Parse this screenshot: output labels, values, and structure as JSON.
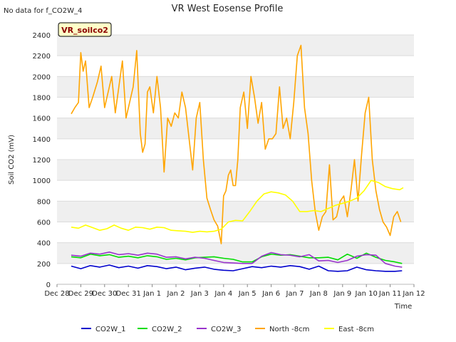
{
  "chart_data": {
    "type": "line",
    "title": "VR West Eosense Profile",
    "corner_note": "No data for f_CO2W_4",
    "site_badge": "VR_soilco2",
    "xlabel": "Time",
    "ylabel": "Soil CO2 (mV)",
    "ylim": [
      0,
      2400
    ],
    "yticks": [
      0,
      200,
      400,
      600,
      800,
      1000,
      1200,
      1400,
      1600,
      1800,
      2000,
      2200,
      2400
    ],
    "xlim": [
      0,
      15
    ],
    "xticks": [
      {
        "value": 0,
        "label": "Dec 28"
      },
      {
        "value": 1,
        "label": "Dec 29"
      },
      {
        "value": 2,
        "label": "Dec 30"
      },
      {
        "value": 3,
        "label": "Dec 31"
      },
      {
        "value": 4,
        "label": "Jan 1"
      },
      {
        "value": 5,
        "label": "Jan 2"
      },
      {
        "value": 6,
        "label": "Jan 3"
      },
      {
        "value": 7,
        "label": "Jan 4"
      },
      {
        "value": 8,
        "label": "Jan 5"
      },
      {
        "value": 9,
        "label": "Jan 6"
      },
      {
        "value": 10,
        "label": "Jan 7"
      },
      {
        "value": 11,
        "label": "Jan 8"
      },
      {
        "value": 12,
        "label": "Jan 9"
      },
      {
        "value": 13,
        "label": "Jan 10"
      },
      {
        "value": 14,
        "label": "Jan 11"
      },
      {
        "value": 15,
        "label": "Jan 12"
      }
    ],
    "grid": true,
    "legend_position": "bottom",
    "series": [
      {
        "name": "CO2W_1",
        "color": "#0000cc",
        "x": [
          0.6,
          1.0,
          1.4,
          1.8,
          2.2,
          2.6,
          3.0,
          3.4,
          3.8,
          4.2,
          4.6,
          5.0,
          5.4,
          5.8,
          6.2,
          6.6,
          7.0,
          7.4,
          7.8,
          8.2,
          8.6,
          9.0,
          9.4,
          9.8,
          10.2,
          10.6,
          11.0,
          11.4,
          11.8,
          12.2,
          12.6,
          13.0,
          13.4,
          13.8,
          14.2,
          14.5
        ],
        "y": [
          175,
          150,
          180,
          165,
          185,
          160,
          175,
          155,
          180,
          170,
          150,
          165,
          140,
          155,
          165,
          145,
          135,
          130,
          150,
          170,
          160,
          175,
          165,
          180,
          170,
          145,
          175,
          130,
          125,
          130,
          165,
          140,
          130,
          125,
          125,
          130
        ]
      },
      {
        "name": "CO2W_2",
        "color": "#00dd00",
        "x": [
          0.6,
          1.0,
          1.4,
          1.8,
          2.2,
          2.6,
          3.0,
          3.4,
          3.8,
          4.2,
          4.6,
          5.0,
          5.4,
          5.8,
          6.2,
          6.6,
          7.0,
          7.4,
          7.8,
          8.2,
          8.6,
          9.0,
          9.4,
          9.8,
          10.2,
          10.6,
          11.0,
          11.4,
          11.8,
          12.2,
          12.6,
          13.0,
          13.4,
          13.8,
          14.2,
          14.5
        ],
        "y": [
          265,
          255,
          290,
          275,
          285,
          260,
          270,
          255,
          275,
          265,
          240,
          250,
          235,
          255,
          260,
          265,
          250,
          240,
          215,
          215,
          265,
          290,
          280,
          285,
          270,
          255,
          255,
          260,
          235,
          290,
          250,
          300,
          260,
          230,
          215,
          200
        ]
      },
      {
        "name": "CO2W_3",
        "color": "#9933cc",
        "x": [
          0.6,
          1.0,
          1.4,
          1.8,
          2.2,
          2.6,
          3.0,
          3.4,
          3.8,
          4.2,
          4.6,
          5.0,
          5.4,
          5.8,
          6.2,
          6.6,
          7.0,
          7.4,
          7.8,
          8.2,
          8.6,
          9.0,
          9.4,
          9.8,
          10.2,
          10.6,
          11.0,
          11.4,
          11.8,
          12.2,
          12.6,
          13.0,
          13.4,
          13.8,
          14.2,
          14.5
        ],
        "y": [
          280,
          270,
          300,
          290,
          310,
          285,
          295,
          280,
          300,
          290,
          260,
          265,
          245,
          260,
          250,
          230,
          210,
          205,
          200,
          200,
          270,
          305,
          285,
          280,
          265,
          285,
          225,
          230,
          210,
          230,
          270,
          285,
          280,
          200,
          175,
          165
        ]
      },
      {
        "name": "North -8cm",
        "color": "#ffa500",
        "x": [
          0.6,
          0.75,
          0.9,
          1.0,
          1.1,
          1.2,
          1.35,
          1.5,
          1.7,
          1.85,
          2.0,
          2.15,
          2.3,
          2.45,
          2.6,
          2.75,
          2.9,
          3.05,
          3.2,
          3.35,
          3.5,
          3.6,
          3.7,
          3.8,
          3.9,
          4.05,
          4.2,
          4.35,
          4.5,
          4.65,
          4.8,
          4.95,
          5.1,
          5.25,
          5.4,
          5.55,
          5.7,
          5.85,
          6.0,
          6.15,
          6.3,
          6.45,
          6.6,
          6.75,
          6.9,
          7.0,
          7.1,
          7.2,
          7.3,
          7.4,
          7.5,
          7.6,
          7.7,
          7.85,
          8.0,
          8.15,
          8.3,
          8.45,
          8.6,
          8.75,
          8.9,
          9.05,
          9.2,
          9.35,
          9.5,
          9.65,
          9.8,
          9.95,
          10.1,
          10.25,
          10.4,
          10.55,
          10.7,
          10.85,
          11.0,
          11.15,
          11.3,
          11.45,
          11.6,
          11.75,
          11.9,
          12.05,
          12.2,
          12.35,
          12.5,
          12.65,
          12.8,
          12.95,
          13.1,
          13.25,
          13.4,
          13.55,
          13.7,
          13.85,
          14.0,
          14.15,
          14.3,
          14.45
        ],
        "y": [
          1640,
          1700,
          1750,
          2230,
          2050,
          2150,
          1700,
          1800,
          1950,
          2100,
          1700,
          1850,
          2000,
          1650,
          1900,
          2150,
          1600,
          1750,
          1900,
          2250,
          1450,
          1270,
          1350,
          1850,
          1900,
          1650,
          2000,
          1700,
          1080,
          1600,
          1520,
          1650,
          1600,
          1850,
          1700,
          1400,
          1100,
          1600,
          1750,
          1200,
          830,
          720,
          620,
          560,
          390,
          850,
          900,
          1050,
          1100,
          950,
          950,
          1200,
          1700,
          1850,
          1500,
          2000,
          1800,
          1550,
          1750,
          1300,
          1400,
          1400,
          1450,
          1900,
          1500,
          1600,
          1400,
          1750,
          2200,
          2300,
          1700,
          1450,
          1000,
          700,
          520,
          650,
          700,
          1150,
          620,
          650,
          800,
          850,
          650,
          900,
          1200,
          800,
          1250,
          1650,
          1800,
          1200,
          900,
          720,
          600,
          550,
          470,
          650,
          700,
          600
        ]
      },
      {
        "name": "East -8cm",
        "color": "#ffff00",
        "x": [
          0.6,
          0.9,
          1.2,
          1.5,
          1.8,
          2.1,
          2.4,
          2.7,
          3.0,
          3.3,
          3.6,
          3.9,
          4.2,
          4.5,
          4.8,
          5.1,
          5.4,
          5.7,
          6.0,
          6.3,
          6.6,
          6.9,
          7.2,
          7.5,
          7.8,
          8.1,
          8.4,
          8.7,
          9.0,
          9.3,
          9.6,
          9.9,
          10.2,
          10.5,
          10.8,
          11.1,
          11.4,
          11.7,
          12.0,
          12.3,
          12.6,
          12.9,
          13.2,
          13.5,
          13.8,
          14.1,
          14.4,
          14.55
        ],
        "y": [
          550,
          540,
          570,
          545,
          520,
          535,
          570,
          540,
          520,
          550,
          545,
          530,
          550,
          545,
          520,
          515,
          510,
          500,
          510,
          505,
          510,
          530,
          600,
          615,
          610,
          700,
          800,
          870,
          890,
          880,
          860,
          800,
          700,
          700,
          710,
          700,
          730,
          760,
          780,
          800,
          830,
          900,
          1000,
          980,
          940,
          920,
          910,
          930
        ]
      }
    ]
  }
}
